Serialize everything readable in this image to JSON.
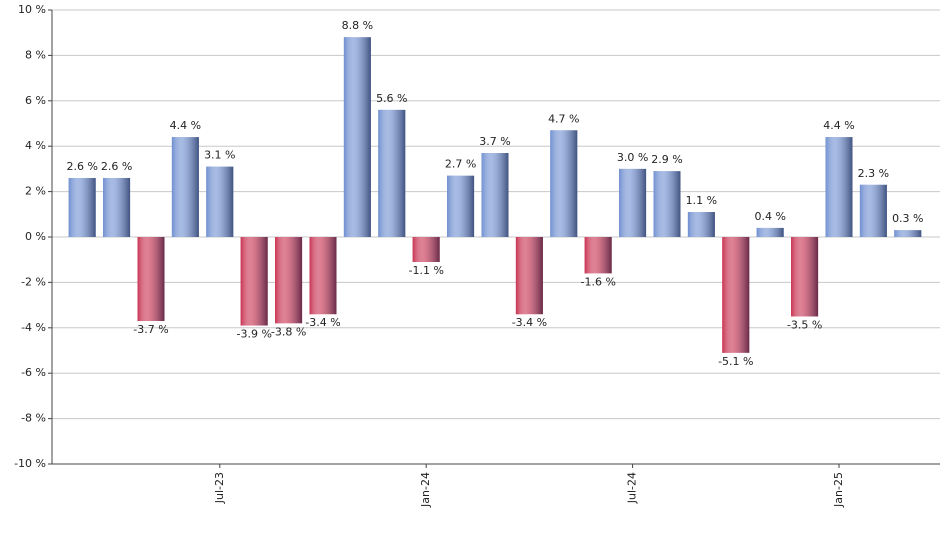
{
  "chart_data": {
    "type": "bar",
    "categories": [
      null,
      null,
      null,
      null,
      "Jul-23",
      null,
      null,
      null,
      null,
      null,
      "Jan-24",
      null,
      null,
      null,
      null,
      null,
      "Jul-24",
      null,
      null,
      null,
      null,
      null,
      "Jan-25",
      null,
      null
    ],
    "values": [
      2.6,
      2.6,
      -3.7,
      4.4,
      3.1,
      -3.9,
      -3.8,
      -3.4,
      8.8,
      5.6,
      -1.1,
      2.7,
      3.7,
      -3.4,
      4.7,
      -1.6,
      3.0,
      2.9,
      1.1,
      -5.1,
      0.4,
      -3.5,
      4.4,
      2.3,
      0.3
    ],
    "value_labels": [
      "2.6 %",
      "2.6 %",
      "-3.7 %",
      "4.4 %",
      "3.1 %",
      "-3.9 %",
      "-3.8 %",
      "-3.4 %",
      "8.8 %",
      "5.6 %",
      "-1.1 %",
      "2.7 %",
      "3.7 %",
      "-3.4 %",
      "4.7 %",
      "-1.6 %",
      "3.0 %",
      "2.9 %",
      "1.1 %",
      "-5.1 %",
      "0.4 %",
      "-3.5 %",
      "4.4 %",
      "2.3 %",
      "0.3 %"
    ],
    "color": "#6f8fd0",
    "negative_color": "#c83352",
    "ylim": [
      -10,
      10
    ],
    "yticks": [
      {
        "value": -10,
        "label": "-10 %"
      },
      {
        "value": -8,
        "label": "-8 %"
      },
      {
        "value": -6,
        "label": "-6 %"
      },
      {
        "value": -4,
        "label": "-4 %"
      },
      {
        "value": -2,
        "label": "-2 %"
      },
      {
        "value": 0,
        "label": "0 %"
      },
      {
        "value": 2,
        "label": "2 %"
      },
      {
        "value": 4,
        "label": "4 %"
      },
      {
        "value": 6,
        "label": "6 %"
      },
      {
        "value": 8,
        "label": "8 %"
      },
      {
        "value": 10,
        "label": "10 %"
      }
    ],
    "grid": true
  }
}
